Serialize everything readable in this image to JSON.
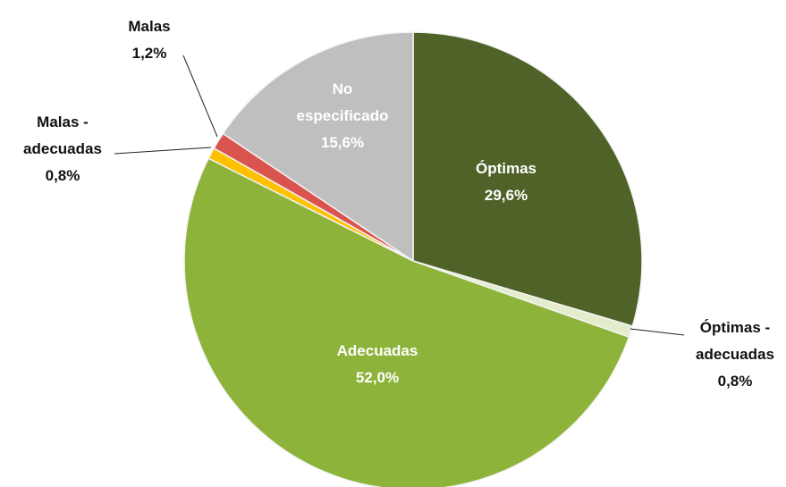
{
  "chart_data": {
    "type": "pie",
    "categories": [
      "Óptimas",
      "Óptimas - adecuadas",
      "Adecuadas",
      "Malas - adecuadas",
      "Malas",
      "No especificado"
    ],
    "values": [
      29.6,
      0.8,
      52.0,
      0.8,
      1.2,
      15.6
    ],
    "value_labels": [
      "29,6%",
      "0,8%",
      "52,0%",
      "0,8%",
      "1,2%",
      "15,6%"
    ],
    "colors": [
      "#4f6228",
      "#e3edcc",
      "#8db33a",
      "#ffc000",
      "#d9534f",
      "#bfbfbf"
    ]
  }
}
